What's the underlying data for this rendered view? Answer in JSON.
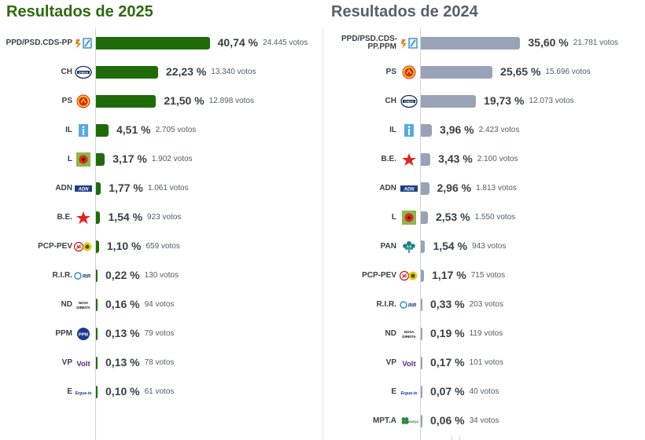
{
  "chart_data": [
    {
      "type": "bar",
      "orientation": "horizontal",
      "title": "Resultados de 2025",
      "color": "#1f6b0a",
      "xlim": [
        0,
        42
      ],
      "categories": [
        "PPD/PSD.CDS-PP",
        "CH",
        "PS",
        "IL",
        "L",
        "ADN",
        "B.E.",
        "PCP-PEV",
        "R.I.R.",
        "ND",
        "PPM",
        "VP",
        "E"
      ],
      "values": [
        40.74,
        22.23,
        21.5,
        4.51,
        3.17,
        1.77,
        1.54,
        1.1,
        0.22,
        0.16,
        0.13,
        0.13,
        0.1
      ],
      "value_labels": [
        "40,74 %",
        "22,23 %",
        "21,50 %",
        "4,51 %",
        "3,17 %",
        "1,77 %",
        "1,54 %",
        "1,10 %",
        "0,22 %",
        "0,16 %",
        "0,13 %",
        "0,13 %",
        "0,10 %"
      ],
      "votes": [
        "24.445 votos",
        "13.340 votos",
        "12.898 votos",
        "2.705 votos",
        "1.902 votos",
        "1.061 votos",
        "923 votos",
        "659 votos",
        "130 votos",
        "94 votos",
        "79 votos",
        "78 votos",
        "61 votos"
      ],
      "logos": [
        "ad-logo-icon",
        "chega-logo-icon",
        "ps-logo-icon",
        "il-logo-icon",
        "livre-logo-icon",
        "adn-logo-icon",
        "be-logo-icon",
        "cdu-logo-icon",
        "rir-logo-icon",
        "nova-direita-logo-icon",
        "ppm-logo-icon",
        "volt-logo-icon",
        "ergue-te-logo-icon"
      ],
      "logo_texts": [
        "",
        "CHEGA",
        "",
        "",
        "",
        "ADN",
        "",
        "",
        "RIR",
        "NOVA DIREITA",
        "PPM",
        "Volt",
        "Ergue-te"
      ]
    },
    {
      "type": "bar",
      "orientation": "horizontal",
      "title": "Resultados de 2024",
      "color": "#98a3b8",
      "xlim": [
        0,
        42
      ],
      "categories": [
        "PPD/PSD.CDS-PP.PPM",
        "PS",
        "CH",
        "IL",
        "B.E.",
        "ADN",
        "L",
        "PAN",
        "PCP-PEV",
        "R.I.R.",
        "ND",
        "VP",
        "E",
        "MPT.A"
      ],
      "values": [
        35.6,
        25.65,
        19.73,
        3.96,
        3.43,
        2.96,
        2.53,
        1.54,
        1.17,
        0.33,
        0.19,
        0.17,
        0.07,
        0.06
      ],
      "value_labels": [
        "35,60 %",
        "25,65 %",
        "19,73 %",
        "3,96 %",
        "3,43 %",
        "2,96 %",
        "2,53 %",
        "1,54 %",
        "1,17 %",
        "0,33 %",
        "0,19 %",
        "0,17 %",
        "0,07 %",
        "0,06 %"
      ],
      "votes": [
        "21.781 votos",
        "15.696 votos",
        "12.073 votos",
        "2.423 votos",
        "2.100 votos",
        "1.813 votos",
        "1.550 votos",
        "943 votos",
        "715 votos",
        "203 votos",
        "119 votos",
        "101 votos",
        "40 votos",
        "34 votos"
      ],
      "logos": [
        "ad-logo-icon",
        "ps-logo-icon",
        "chega-logo-icon",
        "il-logo-icon",
        "be-logo-icon",
        "adn-logo-icon",
        "livre-logo-icon",
        "pan-logo-icon",
        "cdu-logo-icon",
        "rir-logo-icon",
        "nova-direita-logo-icon",
        "volt-logo-icon",
        "ergue-te-logo-icon",
        "mpt-alianca-logo-icon"
      ],
      "logo_texts": [
        "",
        "",
        "CHEGA",
        "",
        "",
        "ADN",
        "",
        "",
        "",
        "RIR",
        "NOVA DIREITA",
        "Volt",
        "Ergue-te",
        "aliança"
      ]
    }
  ]
}
